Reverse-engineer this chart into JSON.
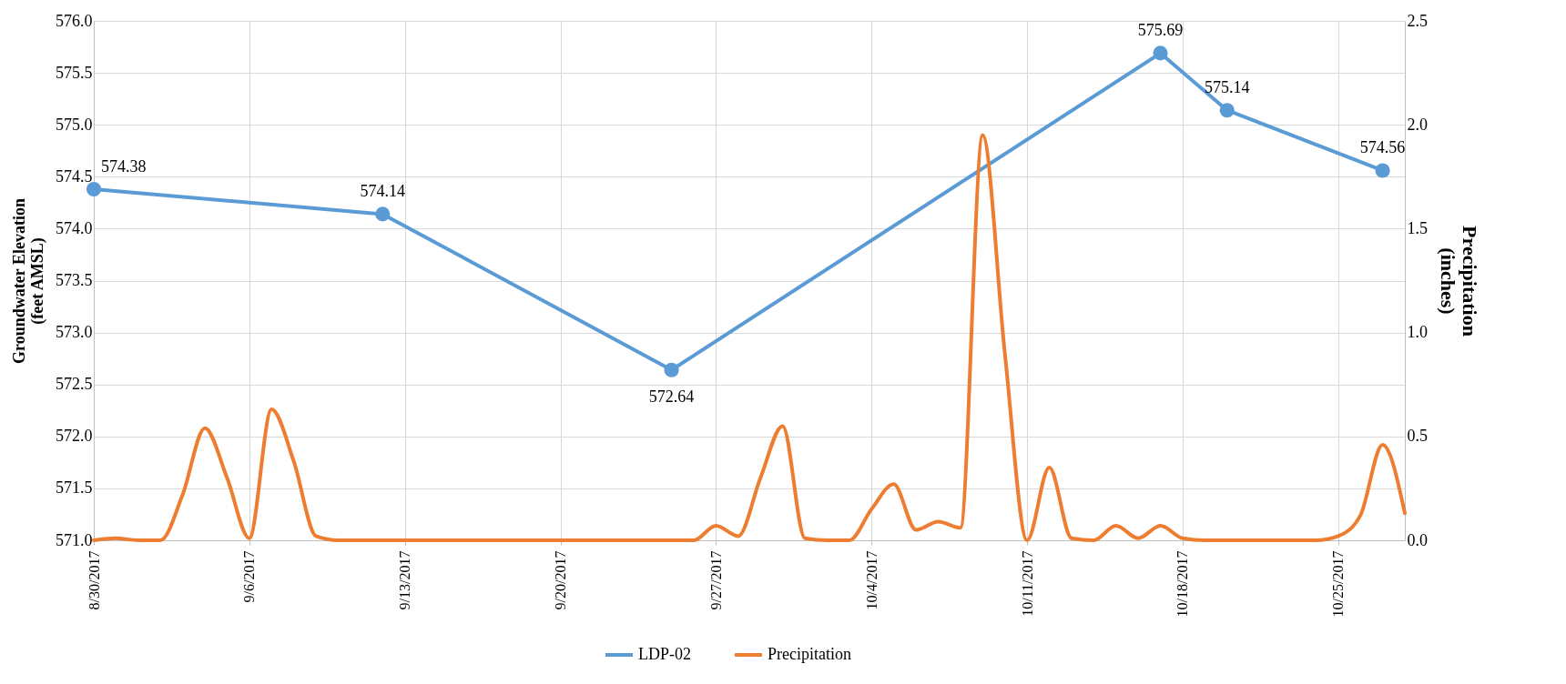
{
  "chart_data": {
    "type": "line",
    "xlabel": null,
    "ylabel": "Groundwater Elevation\n(feet AMSL)",
    "y2label": "Precipitation\n(inches)",
    "xlim": [
      "2017-08-30",
      "2017-10-28"
    ],
    "xticks": [
      {
        "value": "2017-08-30",
        "label": "8/30/2017"
      },
      {
        "value": "2017-09-06",
        "label": "9/6/2017"
      },
      {
        "value": "2017-09-13",
        "label": "9/13/2017"
      },
      {
        "value": "2017-09-20",
        "label": "9/20/2017"
      },
      {
        "value": "2017-09-27",
        "label": "9/27/2017"
      },
      {
        "value": "2017-10-04",
        "label": "10/4/2017"
      },
      {
        "value": "2017-10-11",
        "label": "10/11/2017"
      },
      {
        "value": "2017-10-18",
        "label": "10/18/2017"
      },
      {
        "value": "2017-10-25",
        "label": "10/25/2017"
      }
    ],
    "ylim": [
      571,
      576
    ],
    "yticks": [
      {
        "value": 571,
        "label": "571.0"
      },
      {
        "value": 571.5,
        "label": "571.5"
      },
      {
        "value": 572,
        "label": "572.0"
      },
      {
        "value": 572.5,
        "label": "572.5"
      },
      {
        "value": 573,
        "label": "573.0"
      },
      {
        "value": 573.5,
        "label": "573.5"
      },
      {
        "value": 574,
        "label": "574.0"
      },
      {
        "value": 574.5,
        "label": "574.5"
      },
      {
        "value": 575,
        "label": "575.0"
      },
      {
        "value": 575.5,
        "label": "575.5"
      },
      {
        "value": 576,
        "label": "576.0"
      }
    ],
    "y2lim": [
      0,
      2.5
    ],
    "y2ticks": [
      {
        "value": 0,
        "label": "0.0"
      },
      {
        "value": 0.5,
        "label": "0.5"
      },
      {
        "value": 1,
        "label": "1.0"
      },
      {
        "value": 1.5,
        "label": "1.5"
      },
      {
        "value": 2,
        "label": "2.0"
      },
      {
        "value": 2.5,
        "label": "2.5"
      }
    ],
    "grid": true,
    "legend": "bottom",
    "series": [
      {
        "name": "LDP-02",
        "color": "#5b9bd5",
        "marker": "circle",
        "data_labels": true,
        "x": [
          "2017-08-30",
          "2017-09-12",
          "2017-09-25",
          "2017-10-17",
          "2017-10-20",
          "2017-10-27"
        ],
        "values": [
          574.38,
          574.14,
          572.64,
          575.69,
          575.14,
          574.56
        ]
      },
      {
        "name": "Precipitation",
        "color": "#ed7d31",
        "axis": "y2",
        "marker": "none",
        "x": [
          "2017-08-30",
          "2017-08-31",
          "2017-09-01",
          "2017-09-02",
          "2017-09-03",
          "2017-09-04",
          "2017-09-05",
          "2017-09-06",
          "2017-09-07",
          "2017-09-08",
          "2017-09-09",
          "2017-09-10",
          "2017-09-11",
          "2017-09-12",
          "2017-09-13",
          "2017-09-14",
          "2017-09-15",
          "2017-09-16",
          "2017-09-17",
          "2017-09-18",
          "2017-09-19",
          "2017-09-20",
          "2017-09-21",
          "2017-09-22",
          "2017-09-23",
          "2017-09-24",
          "2017-09-25",
          "2017-09-26",
          "2017-09-27",
          "2017-09-28",
          "2017-09-29",
          "2017-09-30",
          "2017-10-01",
          "2017-10-02",
          "2017-10-03",
          "2017-10-04",
          "2017-10-05",
          "2017-10-06",
          "2017-10-07",
          "2017-10-08",
          "2017-10-09",
          "2017-10-10",
          "2017-10-11",
          "2017-10-12",
          "2017-10-13",
          "2017-10-14",
          "2017-10-15",
          "2017-10-16",
          "2017-10-17",
          "2017-10-18",
          "2017-10-19",
          "2017-10-20",
          "2017-10-21",
          "2017-10-22",
          "2017-10-23",
          "2017-10-24",
          "2017-10-25",
          "2017-10-26",
          "2017-10-27",
          "2017-10-28"
        ],
        "values": [
          0,
          0.01,
          0,
          0,
          0.22,
          0.54,
          0.3,
          0.01,
          0.63,
          0.38,
          0.02,
          0,
          0,
          0,
          0,
          0,
          0,
          0,
          0,
          0,
          0,
          0,
          0,
          0,
          0,
          0,
          0,
          0,
          0.07,
          0.02,
          0.3,
          0.55,
          0.01,
          0,
          0,
          0.15,
          0.27,
          0.05,
          0.09,
          0.06,
          1.95,
          0.9,
          0,
          0.35,
          0.01,
          0,
          0.07,
          0.01,
          0.07,
          0.01,
          0,
          0,
          0,
          0,
          0,
          0,
          0.02,
          0.12,
          0.46,
          0.13
        ]
      }
    ]
  }
}
